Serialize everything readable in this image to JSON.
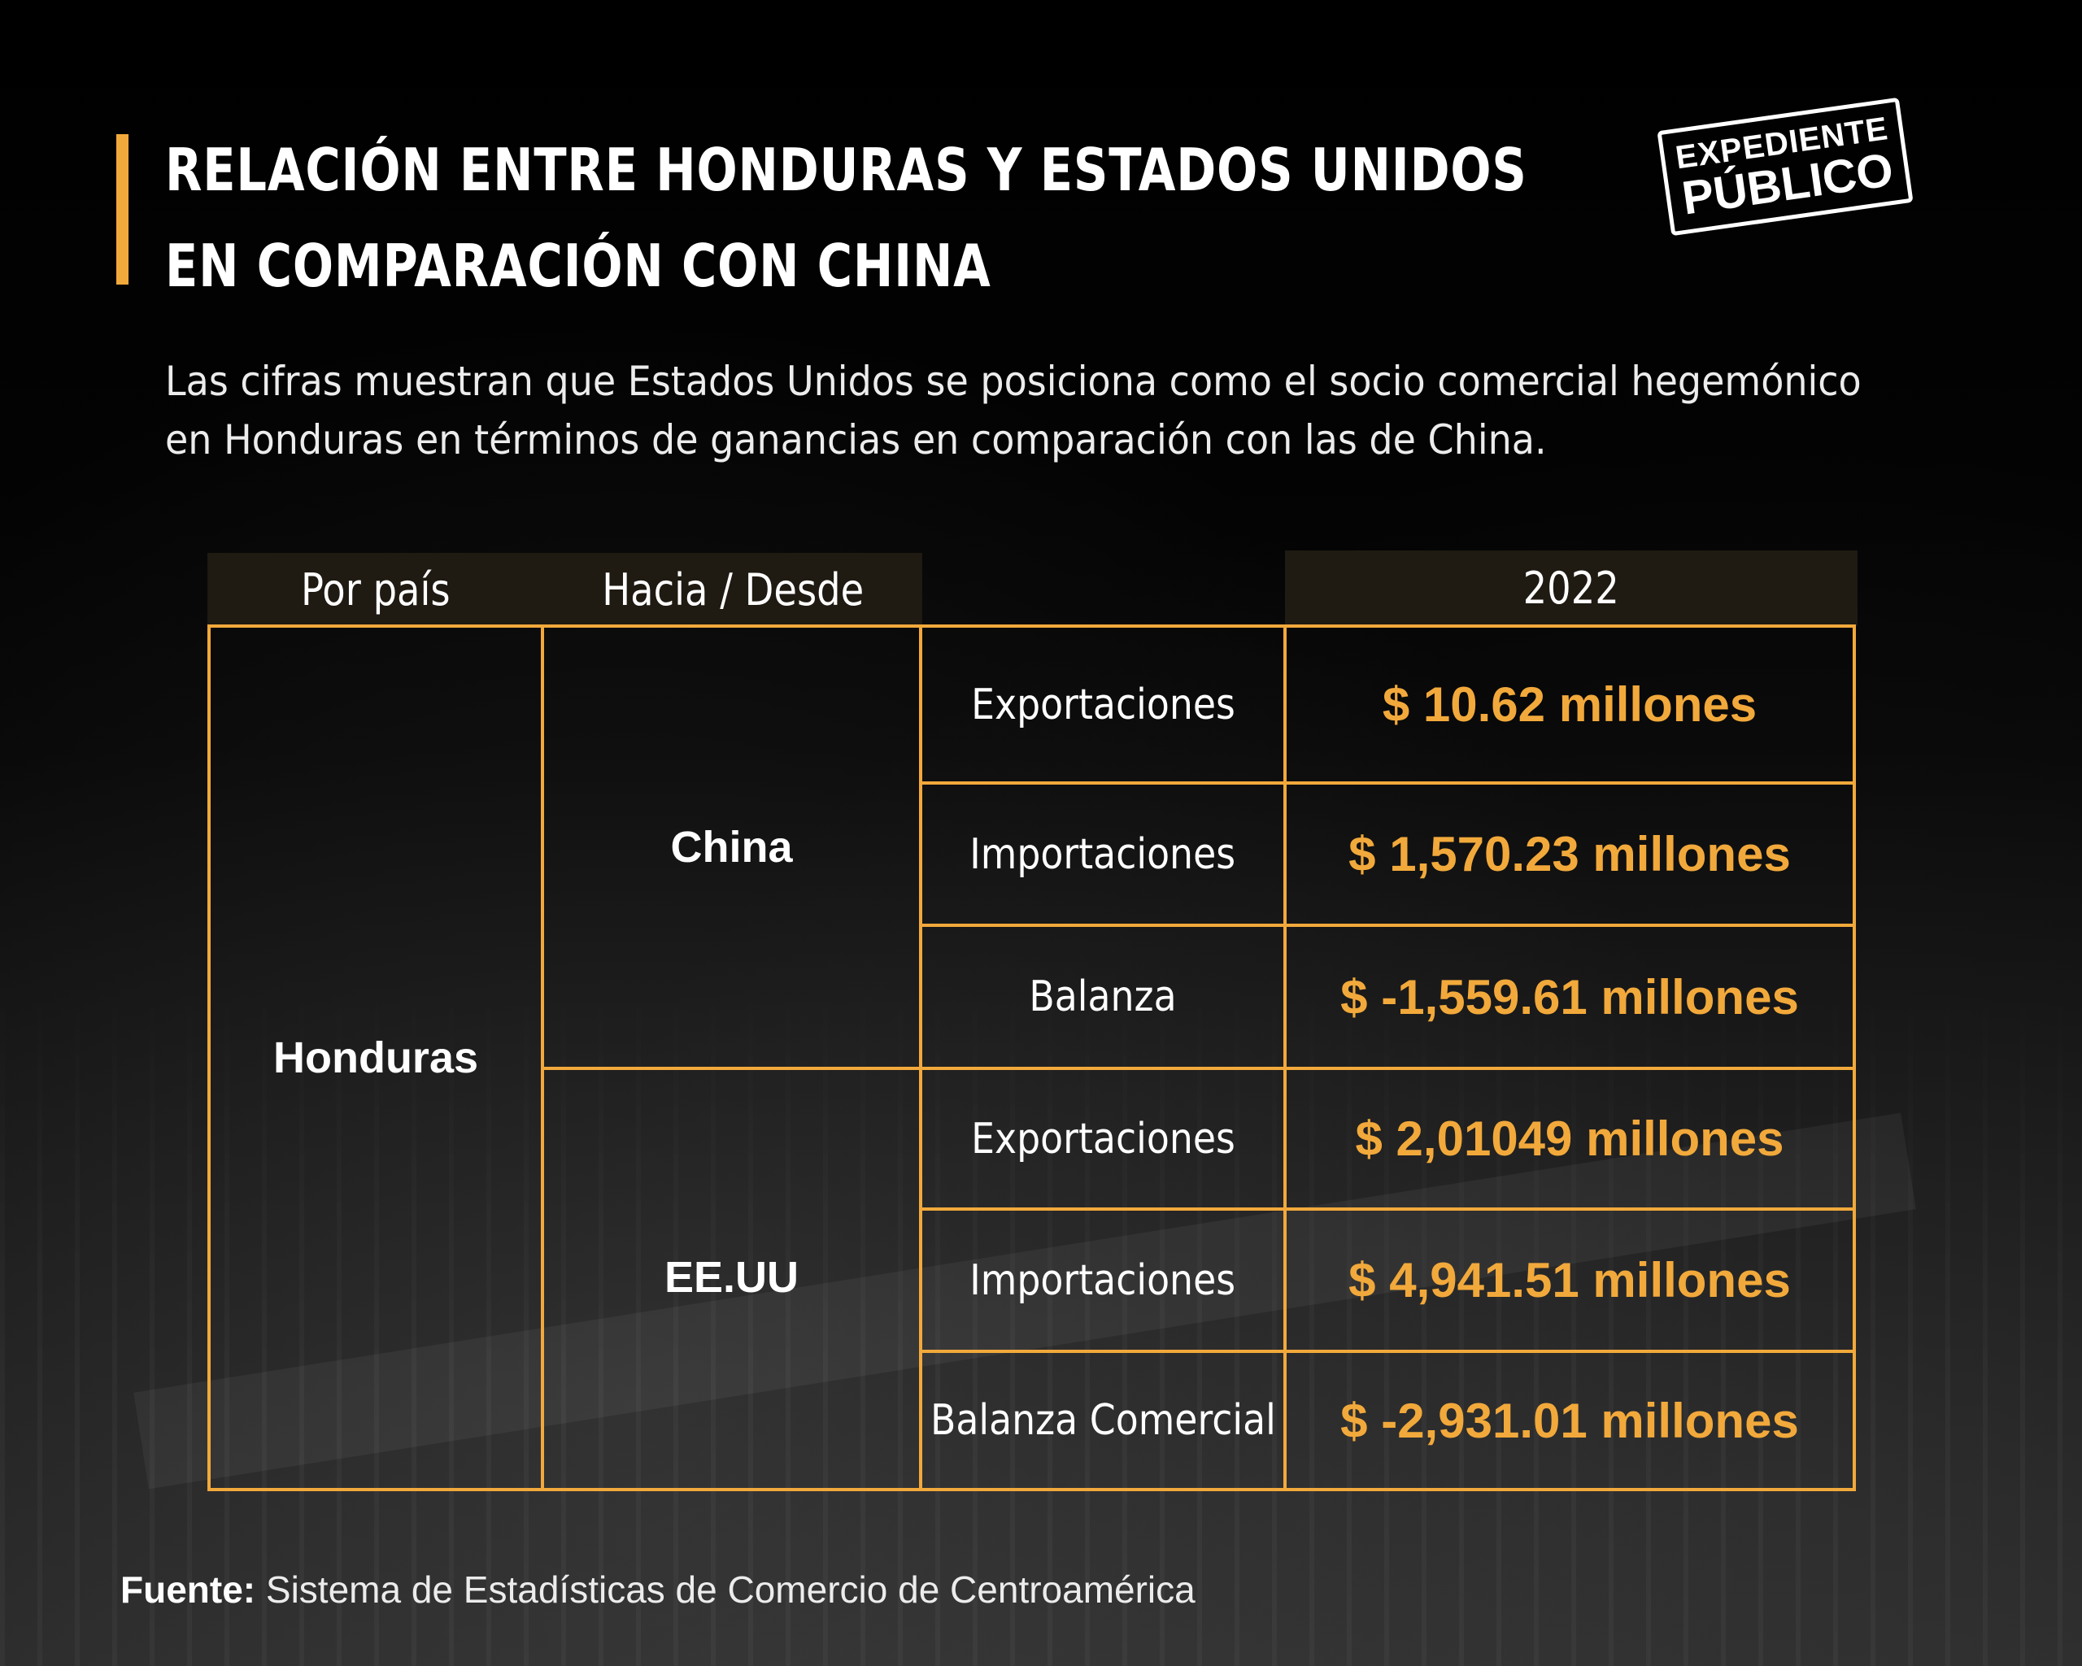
{
  "header": {
    "title_line1": "RELACIÓN ENTRE HONDURAS Y ESTADOS UNIDOS",
    "title_line2": "EN COMPARACIÓN CON CHINA",
    "subtitle_line1": "Las cifras muestran que Estados Unidos se posiciona como el socio comercial hegemónico",
    "subtitle_line2": "en Honduras en términos de ganancias en comparación con las de China."
  },
  "logo": {
    "line1": "EXPEDIENTE",
    "line2": "PÚBLICO"
  },
  "table": {
    "headers": {
      "country": "Por país",
      "direction": "Hacia / Desde",
      "year": "2022"
    },
    "country": "Honduras",
    "partners": [
      {
        "name": "China",
        "rows": [
          {
            "label": "Exportaciones",
            "value": "$ 10.62 millones"
          },
          {
            "label": "Importaciones",
            "value": "$ 1,570.23 millones"
          },
          {
            "label": "Balanza",
            "value": "$ -1,559.61 millones"
          }
        ]
      },
      {
        "name": "EE.UU",
        "rows": [
          {
            "label": "Exportaciones",
            "value": "$ 2,01049  millones"
          },
          {
            "label": "Importaciones",
            "value": "$ 4,941.51  millones"
          },
          {
            "label": "Balanza Comercial",
            "value": "$ -2,931.01  millones"
          }
        ]
      }
    ]
  },
  "source": {
    "label": "Fuente:",
    "text": " Sistema de Estadísticas de Comercio de Centroamérica"
  },
  "colors": {
    "accent": "#f2a93b",
    "background": "#050505",
    "header_fill": "#1f1a12"
  }
}
